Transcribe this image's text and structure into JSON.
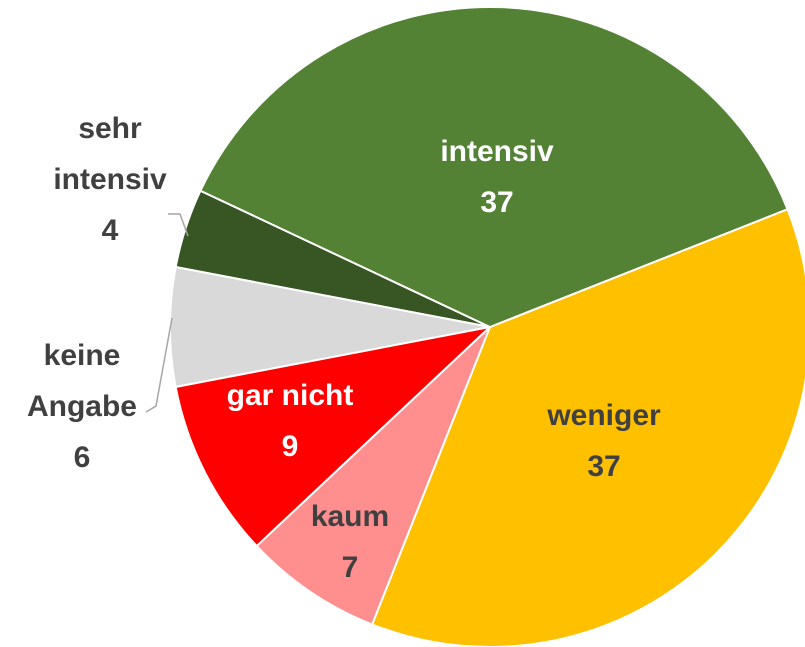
{
  "chart_data": {
    "type": "pie",
    "categories": [
      "intensiv",
      "weniger",
      "kaum",
      "gar nicht",
      "keine Angabe",
      "sehr intensiv"
    ],
    "values": [
      37,
      37,
      7,
      9,
      6,
      4
    ],
    "colors": [
      "#548235",
      "#ffc000",
      "#ff8f8f",
      "#ff0000",
      "#d9d9d9",
      "#375623"
    ]
  }
}
